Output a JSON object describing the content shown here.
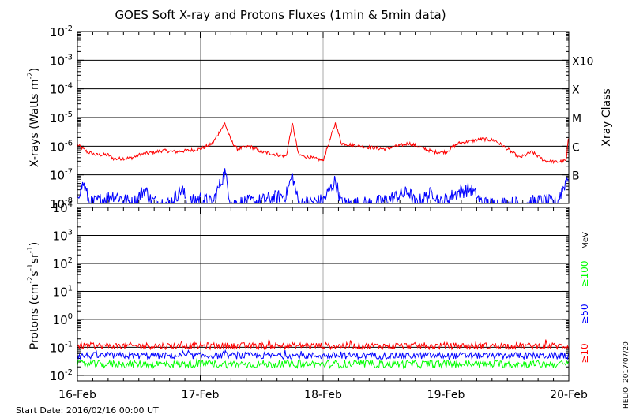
{
  "title": "GOES Soft X-ray and Protons Fluxes   (1min & 5min data)",
  "footer": {
    "start_date": "Start Date: 2016/02/16 00:00 UT",
    "credit": "HELIO: 2017/07/20"
  },
  "colors": {
    "xray_long": "#ff0000",
    "xray_short": "#0000ff",
    "proton_10": "#ff0000",
    "proton_50": "#0000ff",
    "proton_100": "#00ff00",
    "day_lines": "#aaaaaa"
  },
  "chart_data": [
    {
      "type": "line",
      "scale": "log",
      "ylabel_base": "X-rays (Watts m",
      "ylabel_exp": "-2",
      "ylabel_end": ")",
      "right_label": "Xray Class",
      "x_ticks": [
        "16-Feb",
        "17-Feb",
        "18-Feb",
        "19-Feb",
        "20-Feb"
      ],
      "xlim_days": [
        0,
        4
      ],
      "ylim_exp": [
        -8,
        -2
      ],
      "y_ticks": [
        {
          "base": "10",
          "exp": "-2"
        },
        {
          "base": "10",
          "exp": "-3"
        },
        {
          "base": "10",
          "exp": "-4"
        },
        {
          "base": "10",
          "exp": "-5"
        },
        {
          "base": "10",
          "exp": "-6"
        },
        {
          "base": "10",
          "exp": "-7"
        },
        {
          "base": "10",
          "exp": "-8"
        }
      ],
      "class_labels": [
        {
          "label": "X10",
          "exp": -3
        },
        {
          "label": "X",
          "exp": -4
        },
        {
          "label": "M",
          "exp": -5
        },
        {
          "label": "C",
          "exp": -6
        },
        {
          "label": "B",
          "exp": -7
        }
      ],
      "series": [
        {
          "key": "long",
          "points": [
            [
              0,
              -5.95
            ],
            [
              0.08,
              -6.2
            ],
            [
              0.15,
              -6.3
            ],
            [
              0.25,
              -6.3
            ],
            [
              0.3,
              -6.45
            ],
            [
              0.45,
              -6.4
            ],
            [
              0.5,
              -6.3
            ],
            [
              0.7,
              -6.15
            ],
            [
              0.8,
              -6.2
            ],
            [
              0.9,
              -6.15
            ],
            [
              1.0,
              -6.1
            ],
            [
              1.1,
              -5.9
            ],
            [
              1.2,
              -5.2
            ],
            [
              1.25,
              -5.8
            ],
            [
              1.3,
              -6.1
            ],
            [
              1.4,
              -6.0
            ],
            [
              1.5,
              -6.2
            ],
            [
              1.7,
              -6.35
            ],
            [
              1.75,
              -5.2
            ],
            [
              1.8,
              -6.3
            ],
            [
              1.9,
              -6.4
            ],
            [
              2.0,
              -6.5
            ],
            [
              2.1,
              -5.2
            ],
            [
              2.15,
              -5.9
            ],
            [
              2.3,
              -6.0
            ],
            [
              2.5,
              -6.1
            ],
            [
              2.7,
              -5.9
            ],
            [
              2.9,
              -6.2
            ],
            [
              3.0,
              -6.2
            ],
            [
              3.1,
              -5.9
            ],
            [
              3.3,
              -5.75
            ],
            [
              3.4,
              -5.8
            ],
            [
              3.5,
              -6.1
            ],
            [
              3.6,
              -6.4
            ],
            [
              3.7,
              -6.2
            ],
            [
              3.8,
              -6.5
            ],
            [
              3.9,
              -6.55
            ],
            [
              3.98,
              -6.5
            ],
            [
              4.0,
              -5.6
            ]
          ]
        },
        {
          "key": "short",
          "points": [
            [
              0,
              -7.7
            ],
            [
              0.05,
              -7.3
            ],
            [
              0.1,
              -8.0
            ],
            [
              0.3,
              -7.7
            ],
            [
              0.45,
              -8.0
            ],
            [
              0.55,
              -7.5
            ],
            [
              0.6,
              -7.9
            ],
            [
              0.75,
              -8.0
            ],
            [
              0.85,
              -7.5
            ],
            [
              0.9,
              -8.0
            ],
            [
              1.0,
              -7.8
            ],
            [
              1.1,
              -8.0
            ],
            [
              1.2,
              -6.9
            ],
            [
              1.25,
              -8.0
            ],
            [
              1.5,
              -7.9
            ],
            [
              1.7,
              -7.7
            ],
            [
              1.75,
              -7.0
            ],
            [
              1.8,
              -8.0
            ],
            [
              2.0,
              -7.9
            ],
            [
              2.1,
              -7.2
            ],
            [
              2.15,
              -8.0
            ],
            [
              2.4,
              -8.0
            ],
            [
              2.5,
              -7.9
            ],
            [
              2.7,
              -7.6
            ],
            [
              2.75,
              -8.0
            ],
            [
              2.9,
              -7.6
            ],
            [
              2.95,
              -8.0
            ],
            [
              3.1,
              -7.6
            ],
            [
              3.2,
              -7.5
            ],
            [
              3.3,
              -8.0
            ],
            [
              3.5,
              -8.0
            ],
            [
              3.6,
              -8.0
            ],
            [
              3.8,
              -7.9
            ],
            [
              3.9,
              -8.0
            ],
            [
              4.0,
              -7.0
            ]
          ]
        }
      ]
    },
    {
      "type": "line",
      "scale": "log",
      "ylabel_base": "Protons (cm",
      "ylabel_exp": "-2",
      "ylabel_mid": "s",
      "ylabel_exp2": "-1",
      "ylabel_mid2": "sr",
      "ylabel_exp3": "-1",
      "ylabel_end": ")",
      "x_ticks": [
        "16-Feb",
        "17-Feb",
        "18-Feb",
        "19-Feb",
        "20-Feb"
      ],
      "xlim_days": [
        0,
        4
      ],
      "ylim_exp": [
        -2.2,
        4
      ],
      "y_ticks": [
        {
          "base": "10",
          "exp": "4"
        },
        {
          "base": "10",
          "exp": "3"
        },
        {
          "base": "10",
          "exp": "2"
        },
        {
          "base": "10",
          "exp": "1"
        },
        {
          "base": "10",
          "exp": "0"
        },
        {
          "base": "10",
          "exp": "-1"
        },
        {
          "base": "10",
          "exp": "-2"
        }
      ],
      "threshold_exp": 1,
      "energy_labels": {
        "unit": "MeV",
        "p100": "≥100",
        "p50": "≥50",
        "p10": "≥10"
      },
      "series": [
        {
          "key": "p10",
          "level": -0.95,
          "spread": 0.12
        },
        {
          "key": "p50",
          "level": -1.3,
          "spread": 0.12
        },
        {
          "key": "p100",
          "level": -1.6,
          "spread": 0.14
        }
      ]
    }
  ]
}
